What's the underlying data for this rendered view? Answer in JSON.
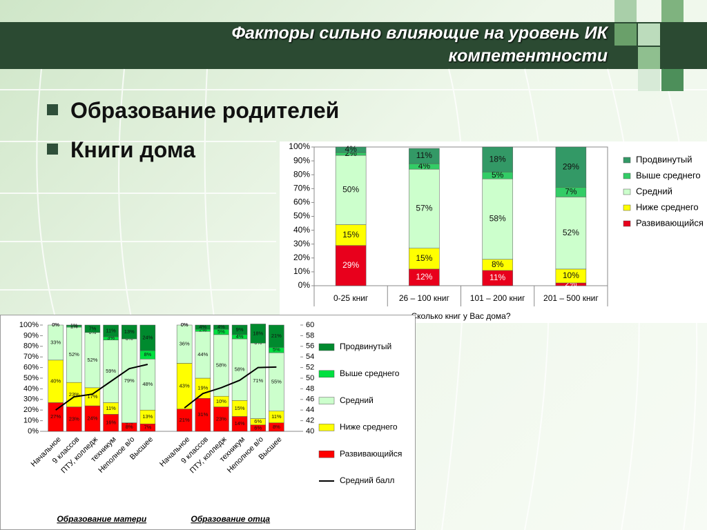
{
  "header": {
    "title_lines": [
      "Факторы сильно влияющие на уровень ИК",
      "компетентности"
    ]
  },
  "bullets": [
    "Образование родителей",
    "Книги дома"
  ],
  "chart_data": [
    {
      "type": "stacked_bar",
      "categories": [
        "0-25 книг",
        "26 – 100 книг",
        "101 – 200 книг",
        "201 – 500 книг"
      ],
      "x_label": "Сколько книг у Вас дома?",
      "ylim": [
        0,
        100
      ],
      "yticks": [
        {
          "value": 0,
          "label": "0%"
        },
        {
          "value": 10,
          "label": "10%"
        },
        {
          "value": 20,
          "label": "20%"
        },
        {
          "value": 30,
          "label": "30%"
        },
        {
          "value": 40,
          "label": "40%"
        },
        {
          "value": 50,
          "label": "50%"
        },
        {
          "value": 60,
          "label": "60%"
        },
        {
          "value": 70,
          "label": "70%"
        },
        {
          "value": 80,
          "label": "80%"
        },
        {
          "value": 90,
          "label": "90%"
        },
        {
          "value": 100,
          "label": "100%"
        }
      ],
      "legend": "right",
      "series": [
        {
          "name": "Развивающийся",
          "color": "#e8001c",
          "values": [
            29,
            12,
            11,
            2
          ],
          "value_labels": [
            "29%",
            "12%",
            "11%",
            "2%"
          ]
        },
        {
          "name": "Ниже среднего",
          "color": "#ffff00",
          "values": [
            15,
            15,
            8,
            10
          ],
          "value_labels": [
            "15%",
            "15%",
            "8%",
            "10%"
          ]
        },
        {
          "name": "Средний",
          "color": "#ccffcc",
          "values": [
            50,
            57,
            58,
            52
          ],
          "value_labels": [
            "50%",
            "57%",
            "58%",
            "52%"
          ]
        },
        {
          "name": "Выше среднего",
          "color": "#33cc66",
          "values": [
            2,
            4,
            5,
            7
          ],
          "value_labels": [
            "2%",
            "4%",
            "5%",
            "7%"
          ]
        },
        {
          "name": "Продвинутый",
          "color": "#339966",
          "values": [
            4,
            11,
            18,
            29
          ],
          "value_labels": [
            "4%",
            "11%",
            "18%",
            "29%"
          ]
        }
      ]
    },
    {
      "type": "stacked_bar",
      "categories": [
        "Начальное",
        "9 классов",
        "ПТУ, колледж",
        "техникум",
        "Неполное в/о",
        "Высшее",
        "Начальное",
        "9 классов",
        "ПТУ, колледж",
        "техникум",
        "Неполное в/о",
        "Высшее"
      ],
      "group_labels": [
        "Образование матери",
        "Образование отца"
      ],
      "ylim": [
        0,
        100
      ],
      "yticks": [
        {
          "value": 0,
          "label": "0%"
        },
        {
          "value": 10,
          "label": "10%"
        },
        {
          "value": 20,
          "label": "20%"
        },
        {
          "value": 30,
          "label": "30%"
        },
        {
          "value": 40,
          "label": "40%"
        },
        {
          "value": 50,
          "label": "50%"
        },
        {
          "value": 60,
          "label": "60%"
        },
        {
          "value": 70,
          "label": "70%"
        },
        {
          "value": 80,
          "label": "80%"
        },
        {
          "value": 90,
          "label": "90%"
        },
        {
          "value": 100,
          "label": "100%"
        }
      ],
      "y2lim": [
        40,
        60
      ],
      "y2ticks": [
        40,
        42,
        44,
        46,
        48,
        50,
        52,
        54,
        56,
        58,
        60
      ],
      "legend": "right",
      "series": [
        {
          "name": "Развивающийся",
          "color": "#ff0000",
          "values": [
            27,
            23,
            24,
            16,
            8,
            7,
            21,
            31,
            23,
            14,
            6,
            8
          ],
          "value_labels": [
            "27%",
            "23%",
            "24%",
            "16%",
            "8%",
            "7%",
            "21%",
            "31%",
            "23%",
            "14%",
            "6%",
            "8%"
          ]
        },
        {
          "name": "Ниже среднего",
          "color": "#ffff00",
          "values": [
            40,
            23,
            17,
            11,
            0,
            13,
            43,
            19,
            10,
            15,
            6,
            11
          ],
          "value_labels": [
            "40%",
            "23%",
            "17%",
            "11%",
            "0%",
            "13%",
            "43%",
            "19%",
            "10%",
            "15%",
            "6%",
            "11%"
          ]
        },
        {
          "name": "Средний",
          "color": "#ccffcc",
          "values": [
            33,
            52,
            52,
            59,
            79,
            48,
            36,
            44,
            58,
            58,
            71,
            55
          ],
          "value_labels": [
            "33%",
            "52%",
            "52%",
            "59%",
            "79%",
            "48%",
            "36%",
            "44%",
            "58%",
            "58%",
            "71%",
            "55%"
          ]
        },
        {
          "name": "Выше среднего",
          "color": "#00e040",
          "values": [
            0,
            1,
            0,
            3,
            0,
            8,
            0,
            2,
            5,
            4,
            0,
            5
          ],
          "value_labels": [
            "0%",
            "1%",
            "0%",
            "3%",
            "0%",
            "8%",
            "0%",
            "2%",
            "5%",
            "4%",
            "0%",
            "5%"
          ]
        },
        {
          "name": "Продвинутый",
          "color": "#008a2e",
          "values": [
            0,
            1,
            7,
            11,
            13,
            24,
            0,
            4,
            4,
            9,
            18,
            21
          ],
          "value_labels": [
            "0%",
            "1%",
            "7%",
            "11%",
            "13%",
            "24%",
            "0%",
            "4%",
            "4%",
            "9%",
            "18%",
            "21%"
          ]
        },
        {
          "name": "Средний балл",
          "color": "#000000",
          "type": "line",
          "axis": "y2",
          "values": [
            44.0,
            46.5,
            47.0,
            49.4,
            51.8,
            52.6,
            44.4,
            47.1,
            48.2,
            49.6,
            52.0,
            52.1
          ]
        }
      ]
    }
  ]
}
